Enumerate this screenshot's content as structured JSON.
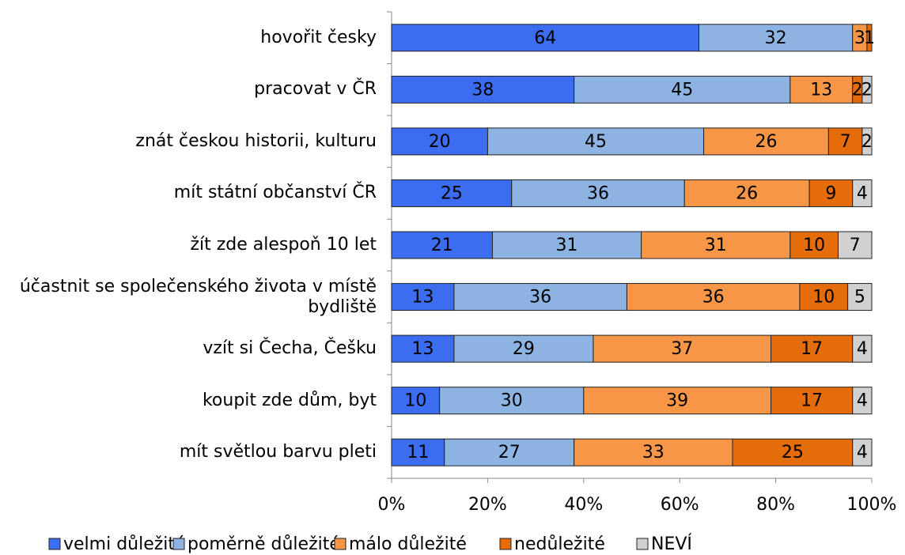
{
  "chart_data": {
    "type": "bar",
    "orientation": "horizontal",
    "stacked": true,
    "categories": [
      "hovořit česky",
      "pracovat v ČR",
      "znát českou historii, kulturu",
      "mít státní občanství ČR",
      "žít zde alespoň 10 let",
      "účastnit se společenského života v místě bydliště",
      "vzít si Čecha, Češku",
      "koupit zde dům, byt",
      "mít světlou barvu pleti"
    ],
    "series": [
      {
        "name": "velmi důležité",
        "color": "#3c6cf0",
        "values": [
          64,
          38,
          20,
          25,
          21,
          13,
          13,
          10,
          11
        ]
      },
      {
        "name": "poměrně důležité",
        "color": "#8db3e2",
        "values": [
          32,
          45,
          45,
          36,
          31,
          36,
          29,
          30,
          27
        ]
      },
      {
        "name": "málo důležité",
        "color": "#f79646",
        "values": [
          3,
          13,
          26,
          26,
          31,
          36,
          37,
          39,
          33
        ]
      },
      {
        "name": "nedůležité",
        "color": "#e46c0a",
        "values": [
          1,
          2,
          7,
          9,
          10,
          10,
          17,
          17,
          25
        ]
      },
      {
        "name": "NEVÍ",
        "color": "#d0d0d0",
        "values": [
          null,
          2,
          2,
          4,
          7,
          5,
          4,
          4,
          4
        ]
      }
    ],
    "xlim": [
      0,
      100
    ],
    "xticks": [
      {
        "value": 0,
        "label": "0%"
      },
      {
        "value": 20,
        "label": "20%"
      },
      {
        "value": 40,
        "label": "40%"
      },
      {
        "value": 60,
        "label": "60%"
      },
      {
        "value": 80,
        "label": "80%"
      },
      {
        "value": 100,
        "label": "100%"
      }
    ],
    "legend": "bottom"
  }
}
